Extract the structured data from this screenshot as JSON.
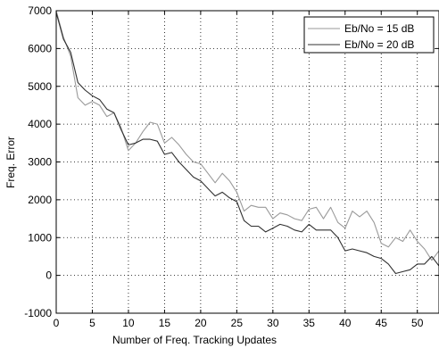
{
  "chart_data": {
    "type": "line",
    "xlabel": "Number of Freq. Tracking Updates",
    "ylabel": "Freq. Error",
    "xlim": [
      0,
      53
    ],
    "ylim": [
      -1000,
      7000
    ],
    "xticks": [
      0,
      5,
      10,
      15,
      20,
      25,
      30,
      35,
      40,
      45,
      50
    ],
    "yticks": [
      -1000,
      0,
      1000,
      2000,
      3000,
      4000,
      5000,
      6000,
      7000
    ],
    "grid": true,
    "legend_position": "top-right",
    "x": [
      0,
      1,
      2,
      3,
      4,
      5,
      6,
      7,
      8,
      9,
      10,
      11,
      12,
      13,
      14,
      15,
      16,
      17,
      18,
      19,
      20,
      21,
      22,
      23,
      24,
      25,
      26,
      27,
      28,
      29,
      30,
      31,
      32,
      33,
      34,
      35,
      36,
      37,
      38,
      39,
      40,
      41,
      42,
      43,
      44,
      45,
      46,
      47,
      48,
      49,
      50,
      51,
      52,
      53
    ],
    "series": [
      {
        "name": "Eb/No = 15 dB",
        "color": "#9a9a9a",
        "values": [
          7000,
          6300,
          5800,
          4700,
          4500,
          4600,
          4500,
          4200,
          4300,
          3900,
          3300,
          3500,
          3800,
          4050,
          4000,
          3500,
          3650,
          3450,
          3200,
          3000,
          2950,
          2700,
          2450,
          2700,
          2500,
          2200,
          1700,
          1850,
          1800,
          1800,
          1500,
          1650,
          1600,
          1500,
          1450,
          1750,
          1800,
          1500,
          1800,
          1400,
          1250,
          1700,
          1550,
          1700,
          1400,
          850,
          750,
          1000,
          900,
          1200,
          900,
          700,
          400,
          650
        ]
      },
      {
        "name": "Eb/No = 20 dB",
        "color": "#303030",
        "values": [
          6950,
          6250,
          5900,
          5100,
          4900,
          4750,
          4650,
          4400,
          4300,
          3850,
          3450,
          3500,
          3600,
          3600,
          3550,
          3200,
          3250,
          3000,
          2800,
          2600,
          2500,
          2300,
          2100,
          2200,
          2050,
          1950,
          1450,
          1300,
          1300,
          1150,
          1250,
          1350,
          1300,
          1200,
          1150,
          1350,
          1200,
          1200,
          1200,
          1000,
          650,
          700,
          650,
          600,
          500,
          450,
          300,
          50,
          100,
          150,
          300,
          300,
          500,
          250
        ]
      }
    ]
  }
}
